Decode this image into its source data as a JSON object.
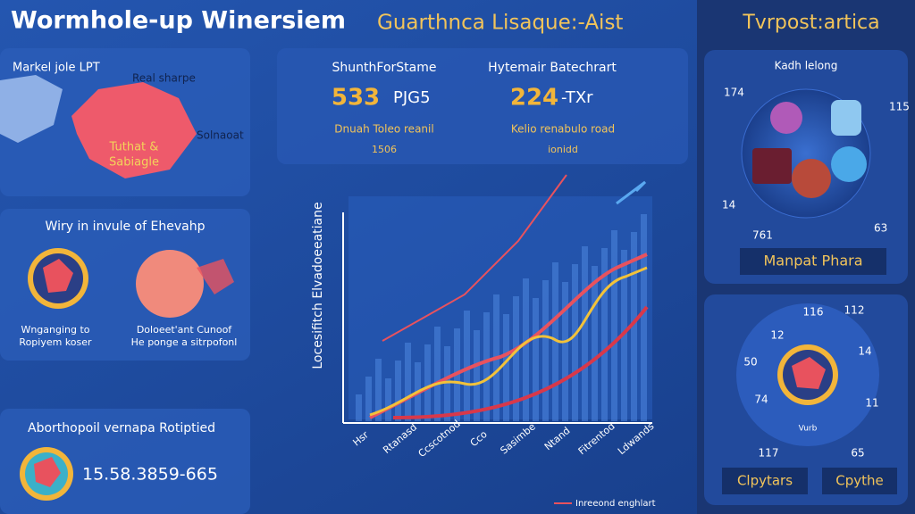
{
  "header": {
    "title": "Wormhole-up Winersiem",
    "subtitle": "Guarthnca Lisaque:-Aist",
    "side_title": "Tvrpost:artica"
  },
  "map_panel": {
    "title": "Markel jole LPT",
    "label_top": "Real sharpe",
    "label_center": [
      "Tuthat &",
      "Sabiagle"
    ],
    "label_right": "Solnaoat"
  },
  "why_panel": {
    "title": "Wiry in invule of Ehevahp",
    "left_caption": [
      "Wnganging to",
      "Ropiyem koser"
    ],
    "right_caption": [
      "Doloeet'ant Cunoof",
      "He ponge a sitrpofonl"
    ]
  },
  "bottom_panel": {
    "title": "Aborthopoil vernapa Rotiptied",
    "value": "15.58.3859-665"
  },
  "stats": [
    {
      "title": "ShunthForStame",
      "value": "533",
      "unit": "PJG5",
      "caption": "Dnuah Toleo reanil",
      "sub": "1506"
    },
    {
      "title": "Hytemair Batechrart",
      "value": "224",
      "unit": "-TXr",
      "caption": "Kelio renabulo road",
      "sub": "ionidd"
    }
  ],
  "chart": {
    "y_label": "Locesifitch Elvadoeeatiane",
    "x_labels": [
      "Hsr",
      "Rtanasd",
      "Ccscotnod",
      "Cco",
      "Sasimbe",
      "Ntand",
      "Fitrentod",
      "Ldwands"
    ],
    "legend": "Inreeond enghlart"
  },
  "side_top": {
    "title": "Kadh lelong",
    "numbers": [
      "174",
      "115",
      "14",
      "63",
      "761"
    ],
    "button": "Manpat Phara"
  },
  "side_bottom": {
    "numbers": [
      "116",
      "112",
      "12",
      "14",
      "50",
      "74",
      "11",
      "117",
      "65"
    ],
    "center": "Vurb",
    "buttons": [
      "Clpytars",
      "Cpythe"
    ]
  }
}
